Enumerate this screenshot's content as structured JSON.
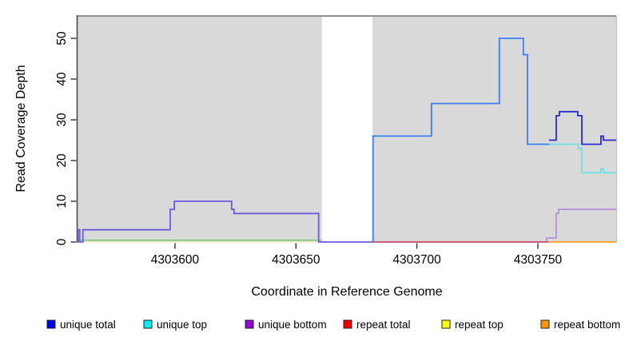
{
  "chart_data": {
    "type": "line",
    "title": "",
    "xlabel": "Coordinate in Reference Genome",
    "ylabel": "Read Coverage Depth",
    "xlim": [
      4303559.7,
      4303782.4
    ],
    "ylim": [
      0,
      55.5
    ],
    "xticks": [
      4303600,
      4303650,
      4303700,
      4303750
    ],
    "xtick_labels": [
      "4303600",
      "4303650",
      "4303700",
      "4303750"
    ],
    "yticks": [
      0,
      10,
      20,
      30,
      40,
      50
    ],
    "ytick_labels": [
      "0",
      "10",
      "20",
      "30",
      "40",
      "50"
    ],
    "grid": false,
    "legend_position": "bottom",
    "background_regions": [
      {
        "name": "aligned-block-left",
        "x0": 4303559.7,
        "x1": 4303660.7,
        "fill": "#d9d9d9"
      },
      {
        "name": "aligned-block-right",
        "x0": 4303681.6,
        "x1": 4303782.4,
        "fill": "#d9d9d9"
      }
    ],
    "gap_region": {
      "x0": 4303660.7,
      "x1": 4303681.6,
      "fill": "#ffffff"
    },
    "series": [
      {
        "name": "baseline-left-yellow",
        "color": "#efe9b0",
        "width": 1.4,
        "points": [
          [
            4303559.7,
            0
          ]
        ],
        "end": 4303660.6
      },
      {
        "name": "baseline-left-green",
        "color": "#7cc47c",
        "width": 1.5,
        "points": [
          [
            4303559.7,
            0.45
          ]
        ],
        "end": 4303660.6
      },
      {
        "name": "unique-bottom-right",
        "color": "#b48bd9",
        "width": 1.6,
        "points": [
          [
            4303681.6,
            0
          ],
          [
            4303753.6,
            1
          ],
          [
            4303757.6,
            7
          ],
          [
            4303758.6,
            8
          ]
        ],
        "end": 4303782.4
      },
      {
        "name": "repeat-total-right",
        "color": "#cf3a5a",
        "width": 1.5,
        "points": [
          [
            4303681.6,
            0
          ]
        ],
        "end": 4303754.6
      },
      {
        "name": "repeat-bottom-right",
        "color": "#ff9d1e",
        "width": 1.7,
        "points": [
          [
            4303754.6,
            0
          ]
        ],
        "end": 4303782.4
      },
      {
        "name": "unique-top-right",
        "color": "#5fe3e3",
        "width": 1.6,
        "points": [
          [
            4303745.7,
            24
          ],
          [
            4303766.8,
            23
          ],
          [
            4303768.2,
            17
          ],
          [
            4303776.1,
            18
          ],
          [
            4303777.1,
            17
          ]
        ],
        "end": 4303782.4
      },
      {
        "name": "unique-total-bottom-left",
        "color": "#6a5add",
        "width": 1.8,
        "points": [
          [
            4303559.7,
            0
          ],
          [
            4303559.9,
            3
          ],
          [
            4303560.6,
            0
          ],
          [
            4303561.9,
            3
          ],
          [
            4303598.0,
            8
          ],
          [
            4303599.7,
            10
          ],
          [
            4303623.4,
            8
          ],
          [
            4303624.4,
            7
          ],
          [
            4303659.4,
            0
          ]
        ],
        "end": 4303681.6
      },
      {
        "name": "unique-total-top-right",
        "color": "#3d7df0",
        "width": 1.8,
        "points": [
          [
            4303681.6,
            0
          ],
          [
            4303681.9,
            26
          ],
          [
            4303706.0,
            34
          ],
          [
            4303734.1,
            50
          ],
          [
            4303744.0,
            46
          ],
          [
            4303745.7,
            24
          ]
        ],
        "end": 4303754.6
      },
      {
        "name": "unique-total-solo-right",
        "color": "#2a2ad2",
        "width": 1.8,
        "points": [
          [
            4303754.6,
            25
          ],
          [
            4303757.6,
            31
          ],
          [
            4303758.9,
            32
          ],
          [
            4303766.5,
            31
          ],
          [
            4303768.2,
            24
          ],
          [
            4303776.1,
            26
          ],
          [
            4303777.1,
            25
          ]
        ],
        "end": 4303782.4
      }
    ],
    "legend": [
      {
        "label": "unique total",
        "color": "#0000ee"
      },
      {
        "label": "unique top",
        "color": "#00eeee"
      },
      {
        "label": "unique bottom",
        "color": "#9400d3"
      },
      {
        "label": "repeat total",
        "color": "#ee0000"
      },
      {
        "label": "repeat top",
        "color": "#ffff00"
      },
      {
        "label": "repeat bottom",
        "color": "#ff9800"
      }
    ],
    "frame": {
      "top_border_color": "#8f8f8f",
      "left_axis_color": "#4b4b4b",
      "right_border_color": "#c6c6c6",
      "tick_color": "#333333"
    }
  }
}
